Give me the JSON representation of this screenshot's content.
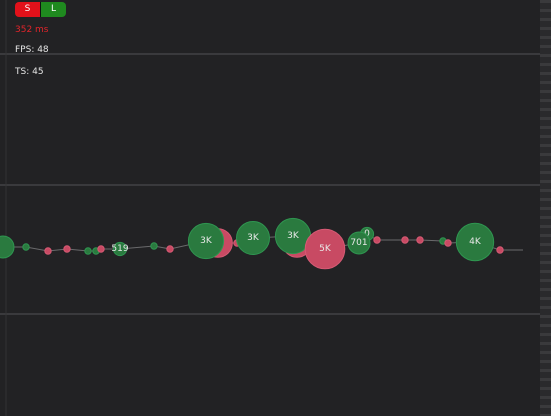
{
  "toolbar": {
    "short_label": "S",
    "long_label": "L"
  },
  "stats": {
    "latency": "352 ms",
    "fps": "FPS: 48",
    "ts": "TS: 45"
  },
  "colors": {
    "buy": "#2a7a3f",
    "sell": "#c84a63",
    "buy_light": "#2f9650",
    "sell_light": "#d65a74",
    "grid": "#4a4a4c",
    "line": "#6a6a6c"
  },
  "trades": [
    {
      "side": "buy",
      "size": 1,
      "label": ""
    },
    {
      "side": "buy",
      "size": 0.2,
      "label": ""
    },
    {
      "side": "sell",
      "size": 0.15,
      "label": ""
    },
    {
      "side": "sell",
      "size": 0.2,
      "label": ""
    },
    {
      "side": "buy",
      "size": 0.2,
      "label": ""
    },
    {
      "side": "buy",
      "size": 0.2,
      "label": ""
    },
    {
      "side": "sell",
      "size": 0.2,
      "label": ""
    },
    {
      "side": "buy",
      "size": 0.6,
      "label": "519"
    },
    {
      "side": "buy",
      "size": 0.2,
      "label": ""
    },
    {
      "side": "sell",
      "size": 0.2,
      "label": ""
    },
    {
      "side": "sell",
      "size": 1.3,
      "label": ""
    },
    {
      "side": "buy",
      "size": 1.6,
      "label": "3K"
    },
    {
      "side": "sell",
      "size": 0.2,
      "label": ""
    },
    {
      "side": "buy",
      "size": 1.5,
      "label": "3K"
    },
    {
      "side": "sell",
      "size": 1.3,
      "label": ""
    },
    {
      "side": "buy",
      "size": 1.6,
      "label": "3K"
    },
    {
      "side": "sell",
      "size": 1.8,
      "label": "5K"
    },
    {
      "side": "buy",
      "size": 0.6,
      "label": "0"
    },
    {
      "side": "buy",
      "size": 1.0,
      "label": "701"
    },
    {
      "side": "sell",
      "size": 0.2,
      "label": ""
    },
    {
      "side": "sell",
      "size": 0.2,
      "label": ""
    },
    {
      "side": "sell",
      "size": 0.2,
      "label": ""
    },
    {
      "side": "buy",
      "size": 0.2,
      "label": ""
    },
    {
      "side": "sell",
      "size": 0.2,
      "label": ""
    },
    {
      "side": "buy",
      "size": 1.7,
      "label": "4K"
    },
    {
      "side": "sell",
      "size": 0.2,
      "label": ""
    }
  ]
}
